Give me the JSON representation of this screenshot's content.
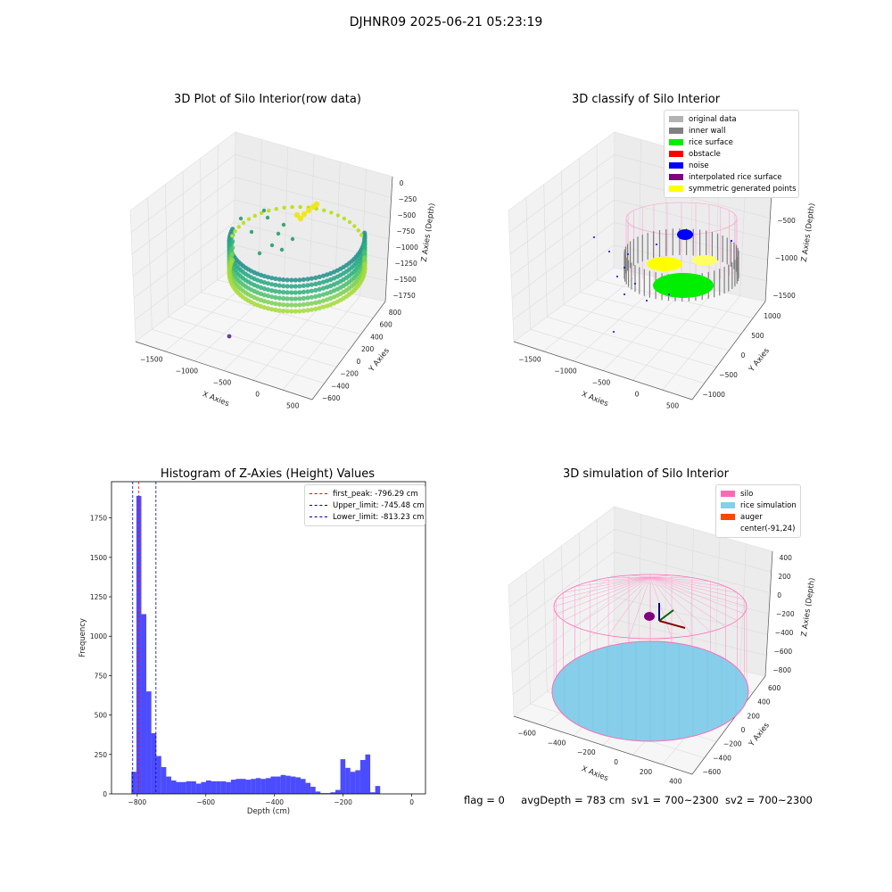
{
  "figure": {
    "suptitle": "DJHNR09 2025-06-21 05:23:19",
    "footer": {
      "flag": "flag = 0",
      "avgDepth": "avgDepth = 783 cm",
      "sv1": "sv1 = 700~2300",
      "sv2": "sv2 = 700~2300"
    }
  },
  "chart_data": [
    {
      "type": "scatter",
      "title": "3D Plot of Silo Interior(row data)",
      "xlabel": "X Axies",
      "ylabel": "Y Axies",
      "zlabel": "Z Axies (Depth)",
      "xticks": [
        "−1500",
        "−1000",
        "−500",
        "0",
        "500"
      ],
      "yticks": [
        "−600",
        "−400",
        "−200",
        "0",
        "200",
        "400",
        "600",
        "800"
      ],
      "zticks": [
        "0",
        "−250",
        "−500",
        "−750",
        "−1000",
        "−1250",
        "−1500",
        "−1750"
      ],
      "colormap": "viridis"
    },
    {
      "type": "scatter",
      "title": "3D classify of Silo Interior",
      "xlabel": "X Axies",
      "ylabel": "Y Axies",
      "zlabel": "Z Axies (Depth)",
      "xticks": [
        "−1500",
        "−1000",
        "−500",
        "0",
        "500"
      ],
      "yticks": [
        "−1000",
        "−500",
        "0",
        "500",
        "1000"
      ],
      "zticks": [
        "0",
        "−500",
        "−1000",
        "−1500"
      ],
      "legend": [
        {
          "label": "original data",
          "color": "#b3b3b3"
        },
        {
          "label": "inner wall",
          "color": "#808080"
        },
        {
          "label": "rice surface",
          "color": "#00ee00"
        },
        {
          "label": "obstacle",
          "color": "#ff0000"
        },
        {
          "label": "noise",
          "color": "#0000ff"
        },
        {
          "label": "interpolated rice surface",
          "color": "#800080"
        },
        {
          "label": "symmetric generated points",
          "color": "#ffff00"
        }
      ]
    },
    {
      "type": "bar",
      "title": "Histogram of Z-Axies (Height) Values",
      "xlabel": "Depth (cm)",
      "ylabel": "Frequency",
      "xlim": [
        -875,
        40
      ],
      "ylim": [
        0,
        1980
      ],
      "xticks": [
        -800,
        -600,
        -400,
        -200,
        0
      ],
      "yticks": [
        0,
        250,
        500,
        750,
        1000,
        1250,
        1500,
        1750
      ],
      "bin_width": 14.5,
      "bin_starts": [
        -817,
        -802.5,
        -788,
        -773.5,
        -759,
        -744.5,
        -730,
        -715.5,
        -701,
        -686.5,
        -672,
        -657.5,
        -643,
        -628.5,
        -614,
        -599.5,
        -585,
        -570.5,
        -556,
        -541.5,
        -527,
        -512.5,
        -498,
        -483.5,
        -469,
        -454.5,
        -440,
        -425.5,
        -411,
        -396.5,
        -382,
        -367.5,
        -353,
        -338.5,
        -324,
        -309.5,
        -295,
        -280.5,
        -266,
        -251.5,
        -237,
        -222.5,
        -208,
        -193.5,
        -179,
        -164.5,
        -150,
        -135.5,
        -121,
        -106.5,
        -92,
        -77.5,
        -63,
        -48.5,
        -34,
        -19.5,
        -5
      ],
      "values": [
        140,
        1890,
        1140,
        650,
        385,
        240,
        170,
        110,
        85,
        75,
        75,
        80,
        80,
        65,
        75,
        85,
        80,
        80,
        80,
        75,
        90,
        95,
        95,
        90,
        95,
        100,
        95,
        100,
        110,
        110,
        120,
        115,
        110,
        105,
        95,
        70,
        45,
        15,
        5,
        5,
        10,
        25,
        220,
        165,
        140,
        150,
        215,
        250,
        10,
        50,
        0,
        0,
        0,
        0,
        0,
        0,
        0
      ],
      "color": "#0000ff",
      "lines": [
        {
          "label": "first_peak: -796.29 cm",
          "x": -796.29,
          "color": "#ff0000"
        },
        {
          "label": "Upper_limit: -745.48 cm",
          "x": -745.48,
          "color": "#0000aa"
        },
        {
          "label": "Lower_limit: -813.23 cm",
          "x": -813.23,
          "color": "#0000aa"
        }
      ]
    },
    {
      "type": "surface",
      "title": "3D simulation of Silo Interior",
      "xlabel": "X Axies",
      "ylabel": "Y Axies",
      "zlabel": "Z Axies (Depth)",
      "xticks": [
        "−600",
        "−400",
        "−200",
        "0",
        "200",
        "400"
      ],
      "yticks": [
        "−600",
        "−400",
        "−200",
        "0",
        "200",
        "400",
        "600"
      ],
      "zticks": [
        "400",
        "200",
        "0",
        "−200",
        "−400",
        "−600",
        "−800"
      ],
      "legend": [
        {
          "label": "silo",
          "color": "#ff69b4"
        },
        {
          "label": "rice simulation",
          "color": "#87ceeb"
        },
        {
          "label": "auger",
          "color": "#ff4500"
        },
        {
          "label": "center(-91,24)",
          "color": ""
        }
      ]
    }
  ]
}
